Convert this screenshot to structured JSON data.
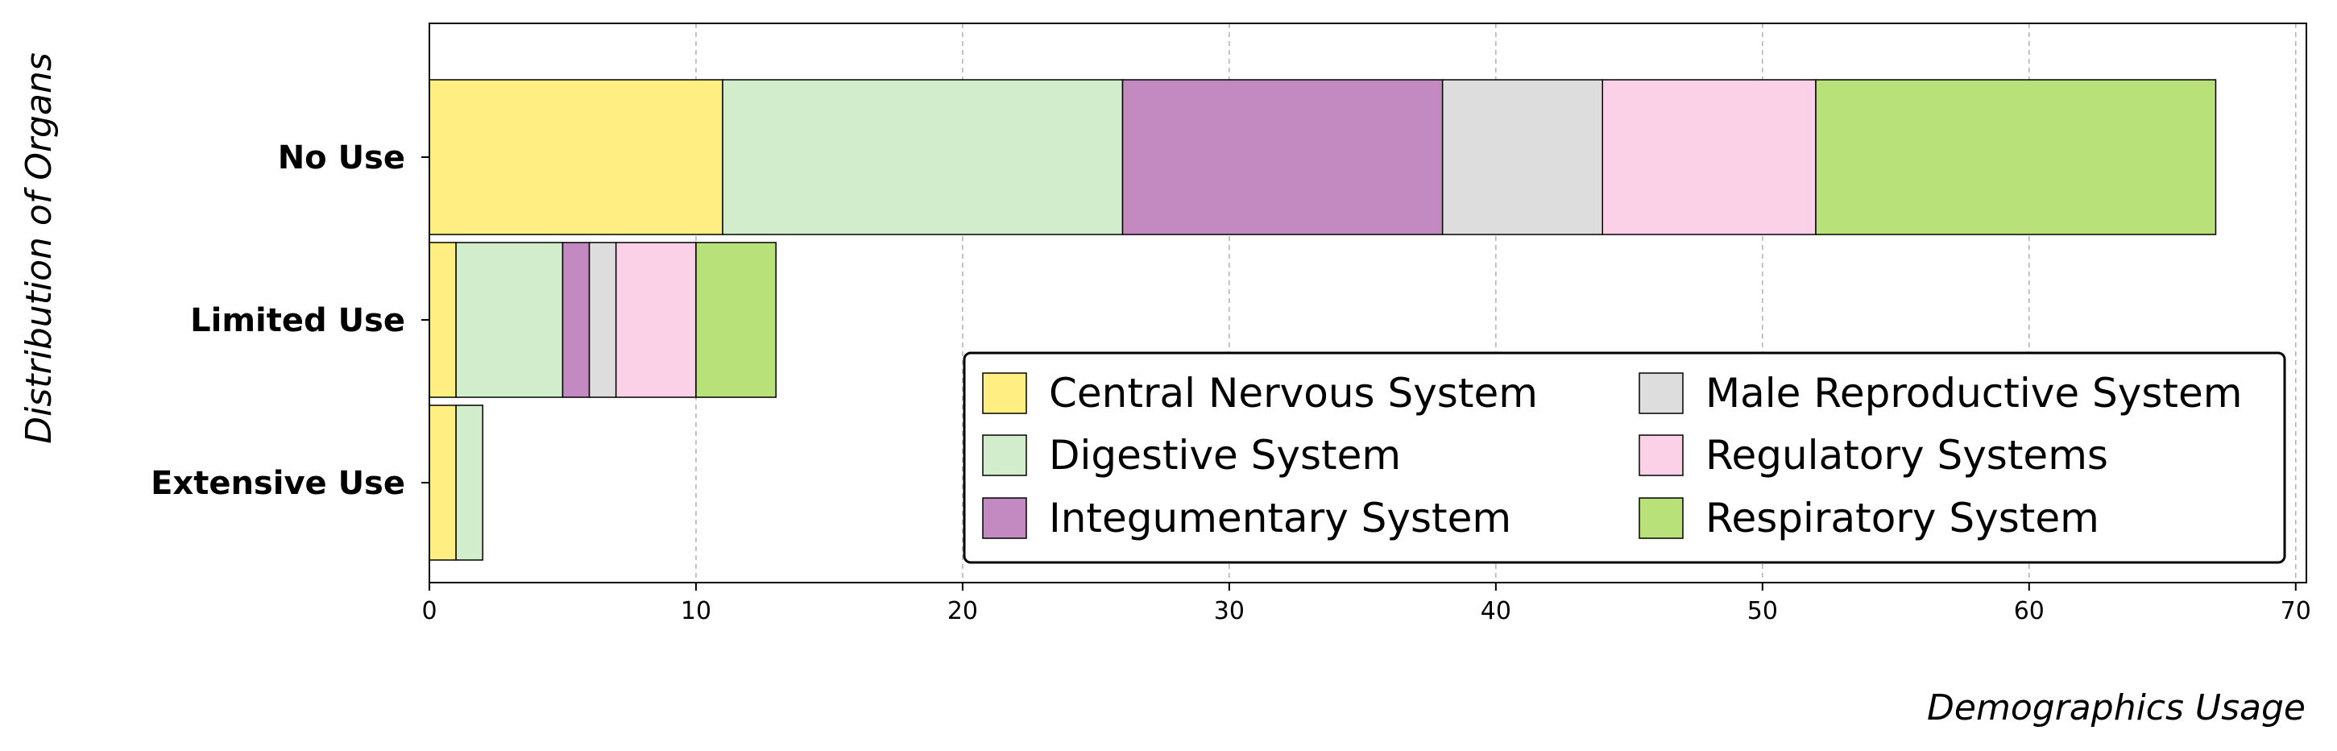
{
  "chart_data": {
    "type": "bar",
    "orientation": "horizontal",
    "stacked": true,
    "categories": [
      "No Use",
      "Limited Use",
      "Extensive Use"
    ],
    "series": [
      {
        "name": "Central Nervous System",
        "values": [
          11,
          1,
          1
        ],
        "color": "#FFEE82"
      },
      {
        "name": "Digestive System",
        "values": [
          15,
          4,
          1
        ],
        "color": "#D2EDCC"
      },
      {
        "name": "Integumentary System",
        "values": [
          12,
          1,
          0
        ],
        "color": "#C38AC2"
      },
      {
        "name": "Male Reproductive System",
        "values": [
          6,
          1,
          0
        ],
        "color": "#DDDDDD"
      },
      {
        "name": "Regulatory Systems",
        "values": [
          8,
          3,
          0
        ],
        "color": "#FAD1E7"
      },
      {
        "name": "Respiratory System",
        "values": [
          15,
          3,
          0
        ],
        "color": "#B9E17A"
      }
    ],
    "xlabel": "Demographics Usage",
    "ylabel": "Distribution of Organs",
    "xlim": [
      0,
      70.4
    ],
    "xticks": [
      0,
      10,
      20,
      30,
      40,
      50,
      60,
      70
    ],
    "grid": "vertical dashed",
    "legend_position": "lower-right",
    "legend_columns": 2
  }
}
